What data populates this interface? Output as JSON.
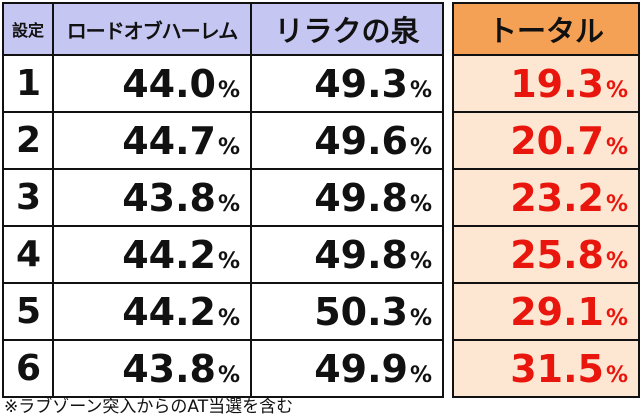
{
  "headers": {
    "setting": "設定",
    "road": "ロードオブハーレム",
    "relax": "リラクの泉",
    "total": "トータル"
  },
  "percent_sign": "%",
  "rows": [
    {
      "setting": "1",
      "road": "44.0",
      "relax": "49.3",
      "total": "19.3"
    },
    {
      "setting": "2",
      "road": "44.7",
      "relax": "49.6",
      "total": "20.7"
    },
    {
      "setting": "3",
      "road": "43.8",
      "relax": "49.8",
      "total": "23.2"
    },
    {
      "setting": "4",
      "road": "44.2",
      "relax": "49.8",
      "total": "25.8"
    },
    {
      "setting": "5",
      "road": "44.2",
      "relax": "50.3",
      "total": "29.1"
    },
    {
      "setting": "6",
      "road": "43.8",
      "relax": "49.9",
      "total": "31.5"
    }
  ],
  "footnote": "※ラブゾーン突入からのAT当選を含む",
  "colors": {
    "header_bg": "#c6c6f2",
    "total_header_bg": "#f4a055",
    "total_cell_bg": "#fde7d3",
    "total_text": "#e8160c"
  }
}
